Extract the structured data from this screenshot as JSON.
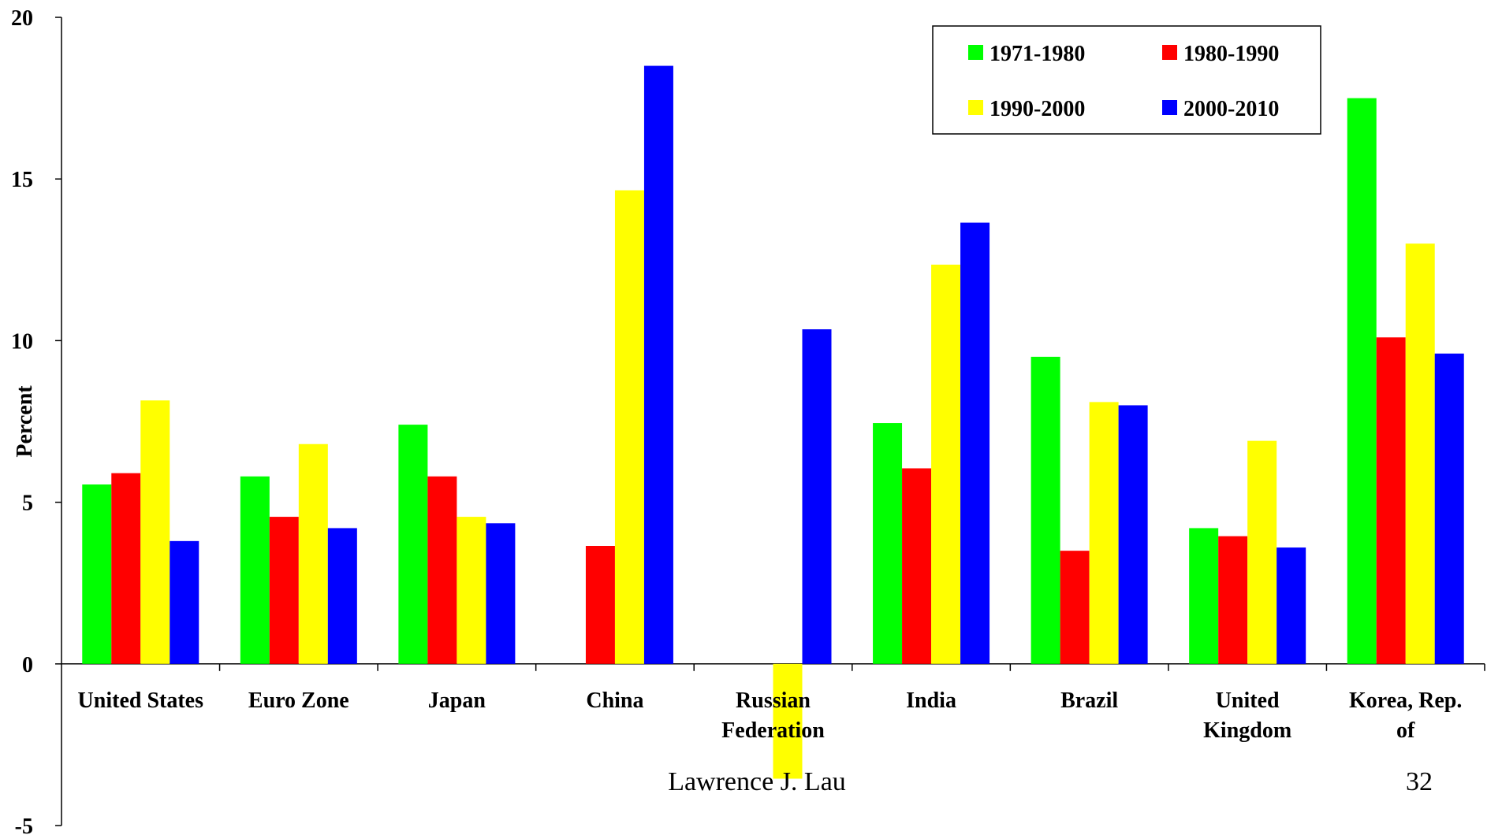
{
  "chart_data": {
    "type": "bar",
    "ylabel": "Percent",
    "ylim": [
      -5,
      20
    ],
    "yticks": [
      -5,
      0,
      5,
      10,
      15,
      20
    ],
    "legend_position": "top-right",
    "categories": [
      [
        "United States"
      ],
      [
        "Euro Zone"
      ],
      [
        "Japan"
      ],
      [
        "China"
      ],
      [
        "Russian",
        "Federation"
      ],
      [
        "India"
      ],
      [
        "Brazil"
      ],
      [
        "United",
        "Kingdom"
      ],
      [
        "Korea, Rep.",
        "of"
      ]
    ],
    "series": [
      {
        "name": "1971-1980",
        "color": "#00ff00",
        "values": [
          5.55,
          5.8,
          7.4,
          null,
          null,
          7.45,
          9.5,
          4.2,
          17.5
        ]
      },
      {
        "name": "1980-1990",
        "color": "#ff0000",
        "values": [
          5.9,
          4.55,
          5.8,
          3.65,
          null,
          6.05,
          3.5,
          3.95,
          10.1
        ]
      },
      {
        "name": "1990-2000",
        "color": "#ffff00",
        "values": [
          8.15,
          6.8,
          4.55,
          14.65,
          -3.55,
          12.35,
          8.1,
          6.9,
          13.0
        ]
      },
      {
        "name": "2000-2010",
        "color": "#0000ff",
        "values": [
          3.8,
          4.2,
          4.35,
          18.5,
          10.35,
          13.65,
          8.0,
          3.6,
          9.6
        ]
      }
    ]
  },
  "footer": {
    "author": "Lawrence J. Lau",
    "page_number": "32"
  }
}
